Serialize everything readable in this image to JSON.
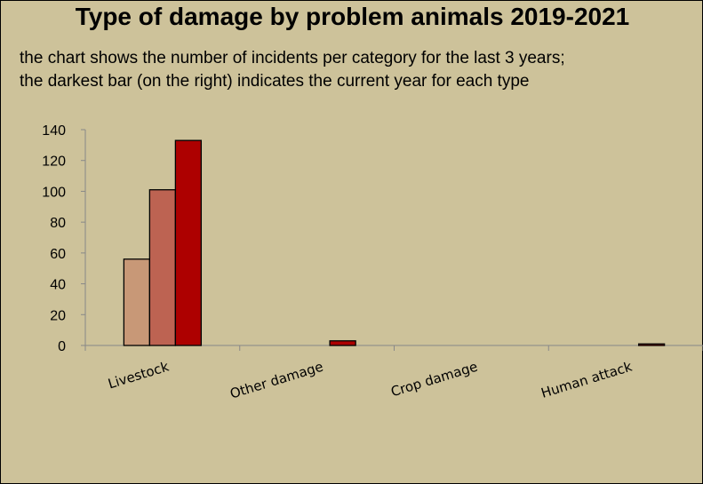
{
  "chart_data": {
    "type": "bar",
    "title": "Type of damage by problem animals 2019-2021",
    "subtitle_lines": [
      "the chart shows the number of incidents per category for the last 3 years;",
      "the darkest bar (on the right) indicates the current year for each type"
    ],
    "categories": [
      "Livestock",
      "Other damage",
      "Crop damage",
      "Human attack"
    ],
    "series": [
      {
        "values": [
          56,
          0,
          0,
          0
        ]
      },
      {
        "values": [
          101,
          0,
          0,
          0
        ]
      },
      {
        "values": [
          133,
          3,
          0,
          1
        ]
      }
    ],
    "series_colors": [
      "#c89877",
      "#bd6352",
      "#ad0000"
    ],
    "yticks": [
      0,
      20,
      40,
      60,
      80,
      100,
      120,
      140
    ],
    "ylim": [
      0,
      140
    ],
    "grid": false,
    "legend": "none",
    "xlabel": "",
    "ylabel": ""
  }
}
